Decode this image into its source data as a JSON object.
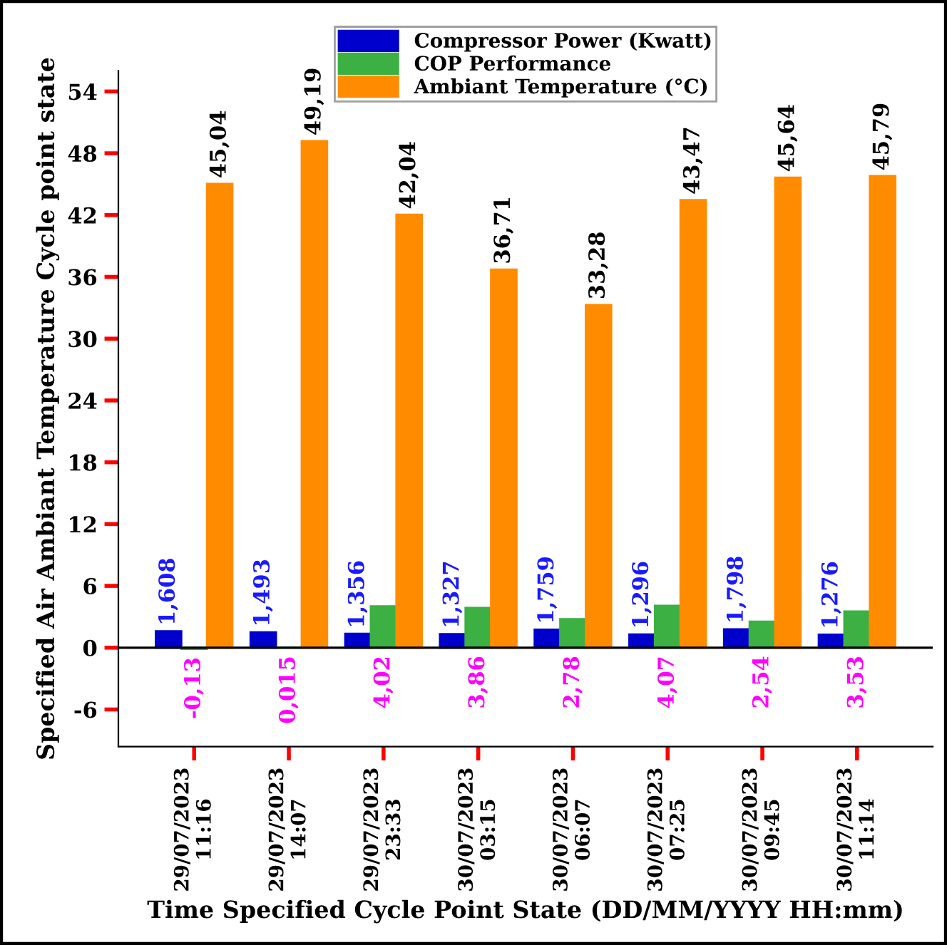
{
  "chart_data": {
    "type": "bar",
    "xlabel": "Time Specified Cycle Point State (DD/MM/YYYY HH:mm)",
    "ylabel": "Specified Air Ambiant Temperature Cycle point state",
    "categories": [
      "29/07/2023\n11:16",
      "29/07/2023\n14:07",
      "29/07/2023\n23:33",
      "30/07/2023\n03:15",
      "30/07/2023\n06:07",
      "30/07/2023\n07:25",
      "30/07/2023\n09:45",
      "30/07/2023\n11:14"
    ],
    "series": [
      {
        "name": "Compressor Power (Kwatt)",
        "color": "#0000cc",
        "values": [
          1.608,
          1.493,
          1.356,
          1.327,
          1.759,
          1.296,
          1.798,
          1.276
        ],
        "value_labels": [
          "1,608",
          "1,493",
          "1,356",
          "1,327",
          "1,759",
          "1,296",
          "1,798",
          "1,276"
        ]
      },
      {
        "name": "COP Performance",
        "color": "#3cb043",
        "values": [
          -0.13,
          0.015,
          4.02,
          3.86,
          2.78,
          4.07,
          2.54,
          3.53
        ],
        "value_labels": [
          "-0,13",
          "0,015",
          "4,02",
          "3,86",
          "2,78",
          "4,07",
          "2,54",
          "3,53"
        ]
      },
      {
        "name": "Ambiant Temperature (°C)",
        "color": "#ff8c00",
        "values": [
          45.04,
          49.19,
          42.04,
          36.71,
          33.28,
          43.47,
          45.64,
          45.79
        ],
        "value_labels": [
          "45,04",
          "49,19",
          "42,04",
          "36,71",
          "33,28",
          "43,47",
          "45,64",
          "45,79"
        ]
      }
    ],
    "ylim": [
      -9.6,
      56
    ],
    "yticks": [
      -6,
      0,
      6,
      12,
      18,
      24,
      30,
      36,
      42,
      48,
      54
    ],
    "ref_lines": [
      {
        "axis": "y",
        "value": 0,
        "label": null,
        "color": "#000000"
      }
    ],
    "legend": "top",
    "grid": false
  }
}
